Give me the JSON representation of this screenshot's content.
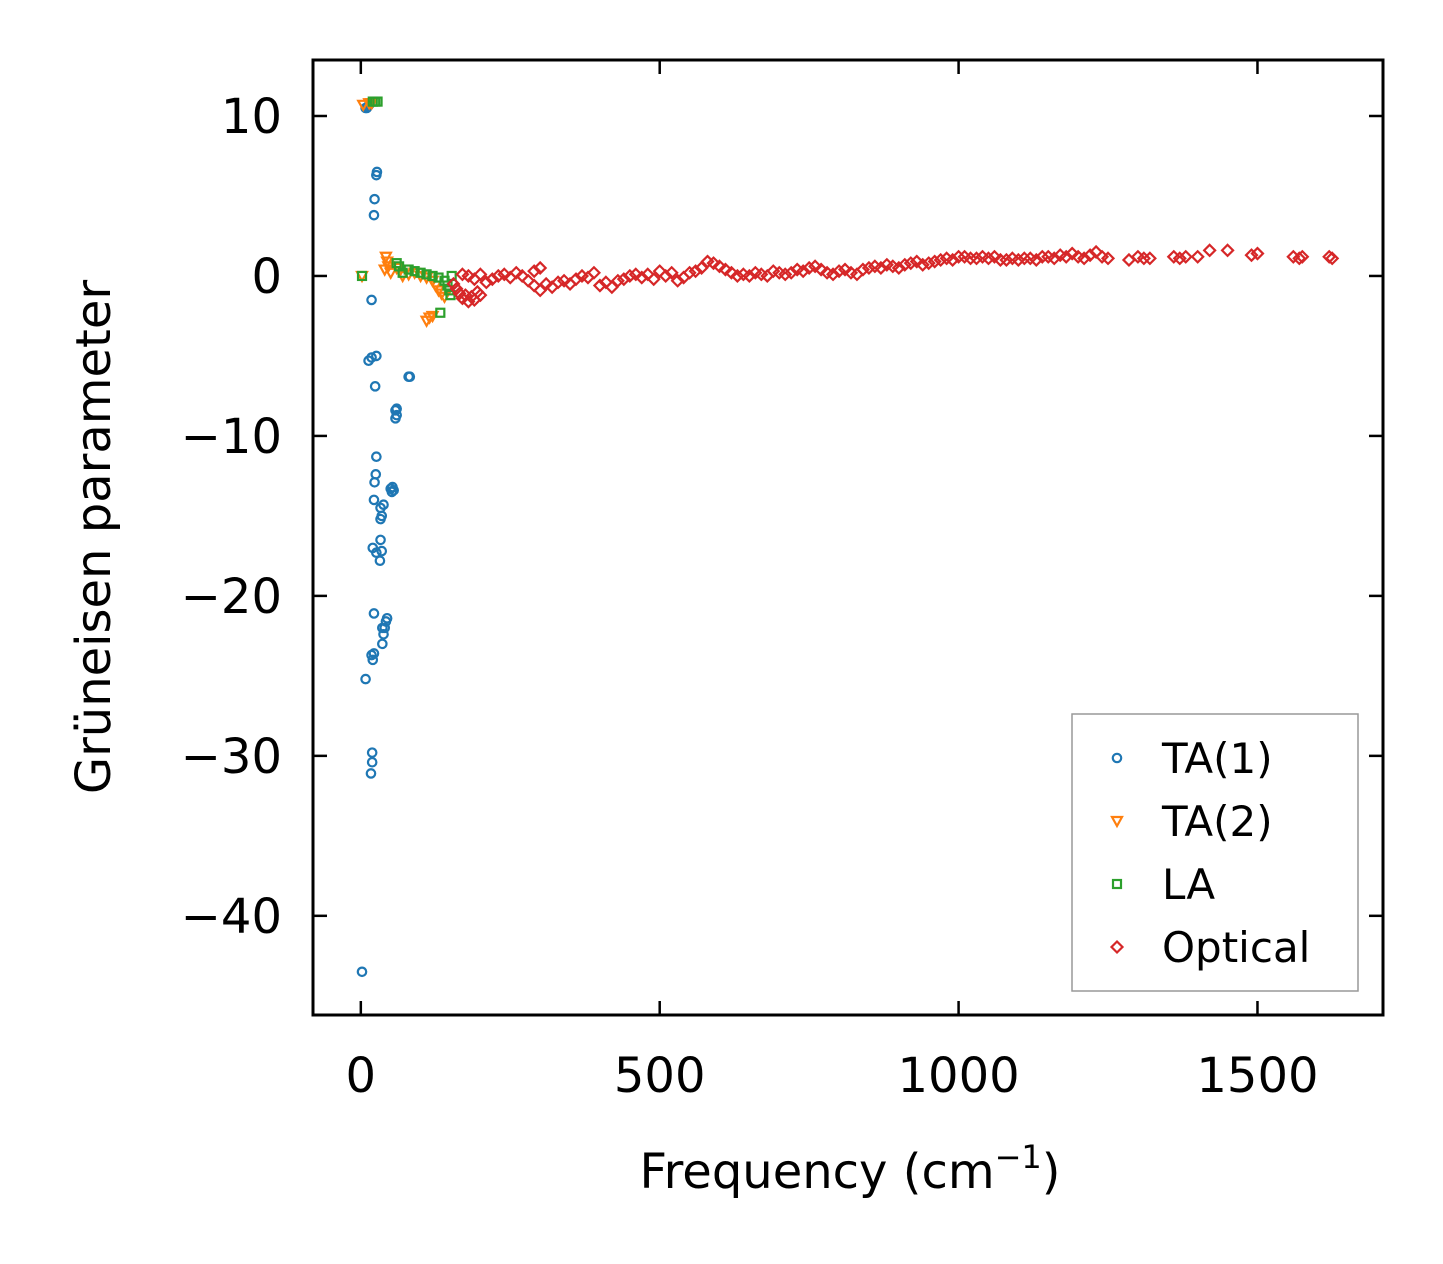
{
  "chart_data": {
    "type": "scatter",
    "title": "",
    "xlabel": "Frequency (cm",
    "xlabel_sup": "−1",
    "xlabel_close": ")",
    "ylabel": "Grüneisen parameter",
    "xlim": [
      -80,
      1710
    ],
    "ylim": [
      -46.2,
      13.5
    ],
    "grid": false,
    "legend_position": "lower-right",
    "x_ticks": [
      0,
      500,
      1000,
      1500
    ],
    "x_tick_labels": [
      "0",
      "500",
      "1000",
      "1500"
    ],
    "y_ticks": [
      10,
      0,
      -10,
      -20,
      -30,
      -40
    ],
    "y_tick_labels": [
      "10",
      "0",
      "−10",
      "−20",
      "−30",
      "−40"
    ],
    "colors": {
      "TA(1)": "#1f77b4",
      "TA(2)": "#ff7f0e",
      "LA": "#2ca02c",
      "Optical": "#d62728"
    },
    "series": [
      {
        "name": "TA(1)",
        "marker": "circle",
        "points": [
          [
            2,
            -43.5
          ],
          [
            8,
            -25.2
          ],
          [
            17,
            -31.1
          ],
          [
            19,
            -29.8
          ],
          [
            19,
            -30.4
          ],
          [
            18,
            -23.7
          ],
          [
            20,
            -24
          ],
          [
            22,
            -23.6
          ],
          [
            22,
            -21.1
          ],
          [
            36,
            -23
          ],
          [
            38,
            -22.4
          ],
          [
            40,
            -22
          ],
          [
            42,
            -21.6
          ],
          [
            44,
            -21.4
          ],
          [
            36,
            -22
          ],
          [
            20,
            -17
          ],
          [
            26,
            -17.3
          ],
          [
            32,
            -17.8
          ],
          [
            33,
            -16.5
          ],
          [
            35,
            -17.2
          ],
          [
            33,
            -15.2
          ],
          [
            35,
            -15
          ],
          [
            33,
            -14.5
          ],
          [
            38,
            -14.3
          ],
          [
            22,
            -14
          ],
          [
            23,
            -12.9
          ],
          [
            25,
            -12.4
          ],
          [
            26,
            -11.3
          ],
          [
            50,
            -13.3
          ],
          [
            52,
            -13.5
          ],
          [
            53,
            -13.2
          ],
          [
            55,
            -13.4
          ],
          [
            58,
            -8.4
          ],
          [
            60,
            -8.7
          ],
          [
            58,
            -8.9
          ],
          [
            60,
            -8.3
          ],
          [
            80,
            -6.3
          ],
          [
            82,
            -6.3
          ],
          [
            13,
            -5.3
          ],
          [
            18,
            -5.1
          ],
          [
            26,
            -5
          ],
          [
            24,
            -6.9
          ],
          [
            18,
            -1.5
          ],
          [
            22,
            3.8
          ],
          [
            23,
            4.8
          ],
          [
            26,
            6.3
          ],
          [
            27,
            6.5
          ],
          [
            8,
            10.5
          ],
          [
            10,
            10.5
          ],
          [
            12,
            10.6
          ],
          [
            14,
            10.7
          ],
          [
            16,
            10.8
          ]
        ]
      },
      {
        "name": "TA(2)",
        "marker": "triangle",
        "points": [
          [
            2,
            0
          ],
          [
            42,
            1.2
          ],
          [
            44,
            0.9
          ],
          [
            46,
            0.6
          ],
          [
            40,
            0.4
          ],
          [
            50,
            0.2
          ],
          [
            60,
            0.5
          ],
          [
            65,
            0.3
          ],
          [
            70,
            0
          ],
          [
            80,
            0.1
          ],
          [
            90,
            0.2
          ],
          [
            100,
            0
          ],
          [
            110,
            -0.1
          ],
          [
            120,
            -0.3
          ],
          [
            125,
            -0.6
          ],
          [
            130,
            -0.9
          ],
          [
            135,
            -1.1
          ],
          [
            140,
            -1.3
          ],
          [
            110,
            -2.8
          ],
          [
            115,
            -2.6
          ],
          [
            120,
            -2.5
          ],
          [
            4,
            10.7
          ],
          [
            14,
            10.8
          ],
          [
            18,
            10.8
          ]
        ]
      },
      {
        "name": "LA",
        "marker": "square",
        "points": [
          [
            2,
            0
          ],
          [
            20,
            10.9
          ],
          [
            24,
            10.9
          ],
          [
            28,
            10.9
          ],
          [
            60,
            0.8
          ],
          [
            64,
            0.6
          ],
          [
            70,
            0.2
          ],
          [
            80,
            0.4
          ],
          [
            90,
            0.3
          ],
          [
            100,
            0.2
          ],
          [
            110,
            0.1
          ],
          [
            120,
            0
          ],
          [
            130,
            -0.1
          ],
          [
            140,
            -0.3
          ],
          [
            145,
            -0.6
          ],
          [
            148,
            -0.9
          ],
          [
            150,
            -1.2
          ],
          [
            152,
            0
          ],
          [
            133,
            -2.3
          ]
        ]
      },
      {
        "name": "Optical",
        "marker": "diamond",
        "points": [
          [
            155,
            -0.5
          ],
          [
            160,
            -0.8
          ],
          [
            165,
            -1.1
          ],
          [
            170,
            -1.4
          ],
          [
            175,
            -1.2
          ],
          [
            180,
            -1.6
          ],
          [
            185,
            -1.3
          ],
          [
            190,
            -1.5
          ],
          [
            195,
            -1
          ],
          [
            200,
            -1.2
          ],
          [
            170,
            0.1
          ],
          [
            180,
            0
          ],
          [
            190,
            -0.2
          ],
          [
            200,
            0.1
          ],
          [
            210,
            -0.4
          ],
          [
            220,
            -0.2
          ],
          [
            230,
            0
          ],
          [
            240,
            0.1
          ],
          [
            250,
            -0.1
          ],
          [
            260,
            0.2
          ],
          [
            270,
            0
          ],
          [
            280,
            -0.3
          ],
          [
            290,
            0.3
          ],
          [
            300,
            0.5
          ],
          [
            290,
            -0.6
          ],
          [
            300,
            -0.9
          ],
          [
            310,
            -0.5
          ],
          [
            320,
            -0.7
          ],
          [
            330,
            -0.4
          ],
          [
            340,
            -0.3
          ],
          [
            350,
            -0.5
          ],
          [
            360,
            -0.2
          ],
          [
            370,
            0
          ],
          [
            380,
            -0.1
          ],
          [
            390,
            0.2
          ],
          [
            400,
            -0.6
          ],
          [
            410,
            -0.4
          ],
          [
            420,
            -0.7
          ],
          [
            430,
            -0.3
          ],
          [
            440,
            -0.2
          ],
          [
            450,
            0
          ],
          [
            460,
            0.1
          ],
          [
            470,
            -0.1
          ],
          [
            480,
            0.1
          ],
          [
            490,
            -0.2
          ],
          [
            500,
            0.3
          ],
          [
            510,
            0
          ],
          [
            520,
            0.2
          ],
          [
            530,
            -0.3
          ],
          [
            540,
            -0.1
          ],
          [
            550,
            0.2
          ],
          [
            560,
            0.3
          ],
          [
            570,
            0.5
          ],
          [
            580,
            0.9
          ],
          [
            590,
            0.8
          ],
          [
            600,
            0.6
          ],
          [
            610,
            0.4
          ],
          [
            620,
            0.2
          ],
          [
            630,
            0
          ],
          [
            640,
            0.1
          ],
          [
            650,
            0
          ],
          [
            660,
            0.2
          ],
          [
            670,
            0.1
          ],
          [
            680,
            0
          ],
          [
            690,
            0.3
          ],
          [
            700,
            0.2
          ],
          [
            710,
            0.1
          ],
          [
            720,
            0.2
          ],
          [
            730,
            0.4
          ],
          [
            740,
            0.3
          ],
          [
            750,
            0.5
          ],
          [
            760,
            0.6
          ],
          [
            770,
            0.4
          ],
          [
            780,
            0.2
          ],
          [
            790,
            0.1
          ],
          [
            800,
            0.3
          ],
          [
            810,
            0.4
          ],
          [
            820,
            0.2
          ],
          [
            830,
            0.1
          ],
          [
            840,
            0.4
          ],
          [
            850,
            0.5
          ],
          [
            860,
            0.6
          ],
          [
            870,
            0.5
          ],
          [
            880,
            0.7
          ],
          [
            890,
            0.6
          ],
          [
            900,
            0.5
          ],
          [
            910,
            0.7
          ],
          [
            920,
            0.8
          ],
          [
            930,
            0.9
          ],
          [
            940,
            0.7
          ],
          [
            950,
            0.8
          ],
          [
            960,
            0.9
          ],
          [
            970,
            1
          ],
          [
            980,
            1.1
          ],
          [
            990,
            1
          ],
          [
            1000,
            1.2
          ],
          [
            1010,
            1.2
          ],
          [
            1020,
            1.1
          ],
          [
            1030,
            1.1
          ],
          [
            1040,
            1.2
          ],
          [
            1050,
            1.1
          ],
          [
            1060,
            1.2
          ],
          [
            1070,
            1
          ],
          [
            1080,
            1
          ],
          [
            1090,
            1.1
          ],
          [
            1100,
            1
          ],
          [
            1110,
            1.1
          ],
          [
            1120,
            1.1
          ],
          [
            1130,
            1
          ],
          [
            1140,
            1.2
          ],
          [
            1150,
            1.2
          ],
          [
            1160,
            1.1
          ],
          [
            1170,
            1.3
          ],
          [
            1180,
            1.2
          ],
          [
            1190,
            1.4
          ],
          [
            1200,
            1.2
          ],
          [
            1210,
            1.1
          ],
          [
            1220,
            1.3
          ],
          [
            1230,
            1.5
          ],
          [
            1240,
            1.2
          ],
          [
            1250,
            1.1
          ],
          [
            1285,
            1
          ],
          [
            1300,
            1.2
          ],
          [
            1310,
            1.1
          ],
          [
            1320,
            1.1
          ],
          [
            1360,
            1.2
          ],
          [
            1370,
            1.1
          ],
          [
            1380,
            1.2
          ],
          [
            1400,
            1.2
          ],
          [
            1420,
            1.6
          ],
          [
            1450,
            1.6
          ],
          [
            1490,
            1.3
          ],
          [
            1500,
            1.4
          ],
          [
            1560,
            1.2
          ],
          [
            1570,
            1.1
          ],
          [
            1575,
            1.2
          ],
          [
            1620,
            1.2
          ],
          [
            1625,
            1.1
          ]
        ]
      }
    ]
  }
}
